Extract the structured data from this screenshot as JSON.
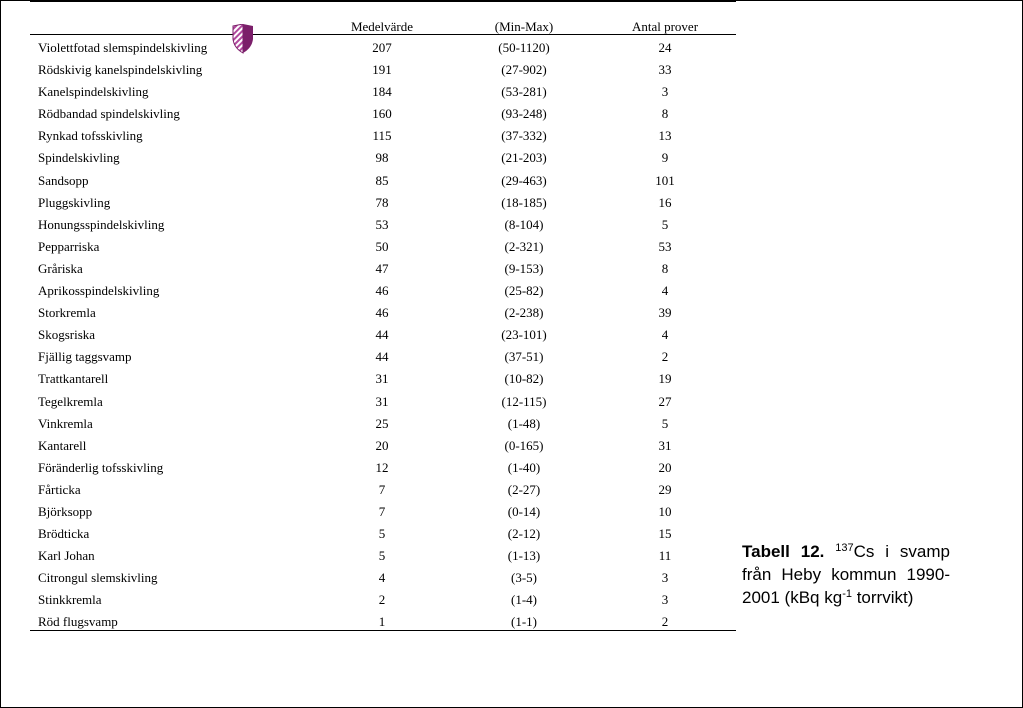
{
  "table": {
    "headers": {
      "mean": "Medelvärde",
      "range": "(Min-Max)",
      "count": "Antal prover"
    },
    "rows": [
      {
        "name": "Violettfotad slemspindelskivling",
        "mean": "207",
        "range": "(50-1120)",
        "count": "24"
      },
      {
        "name": "Rödskivig kanelspindelskivling",
        "mean": "191",
        "range": "(27-902)",
        "count": "33"
      },
      {
        "name": "Kanelspindelskivling",
        "mean": "184",
        "range": "(53-281)",
        "count": "3"
      },
      {
        "name": "Rödbandad spindelskivling",
        "mean": "160",
        "range": "(93-248)",
        "count": "8"
      },
      {
        "name": "Rynkad tofsskivling",
        "mean": "115",
        "range": "(37-332)",
        "count": "13"
      },
      {
        "name": "Spindelskivling",
        "mean": "98",
        "range": "(21-203)",
        "count": "9"
      },
      {
        "name": "Sandsopp",
        "mean": "85",
        "range": "(29-463)",
        "count": "101"
      },
      {
        "name": "Pluggskivling",
        "mean": "78",
        "range": "(18-185)",
        "count": "16"
      },
      {
        "name": "Honungsspindelskivling",
        "mean": "53",
        "range": "(8-104)",
        "count": "5"
      },
      {
        "name": "Pepparriska",
        "mean": "50",
        "range": "(2-321)",
        "count": "53"
      },
      {
        "name": "Gråriska",
        "mean": "47",
        "range": "(9-153)",
        "count": "8"
      },
      {
        "name": "Aprikosspindelskivling",
        "mean": "46",
        "range": "(25-82)",
        "count": "4"
      },
      {
        "name": "Storkremla",
        "mean": "46",
        "range": "(2-238)",
        "count": "39"
      },
      {
        "name": "Skogsriska",
        "mean": "44",
        "range": "(23-101)",
        "count": "4"
      },
      {
        "name": "Fjällig taggsvamp",
        "mean": "44",
        "range": "(37-51)",
        "count": "2"
      },
      {
        "name": "Trattkantarell",
        "mean": "31",
        "range": "(10-82)",
        "count": "19"
      },
      {
        "name": "Tegelkremla",
        "mean": "31",
        "range": "(12-115)",
        "count": "27"
      },
      {
        "name": "Vinkremla",
        "mean": "25",
        "range": "(1-48)",
        "count": "5"
      },
      {
        "name": "Kantarell",
        "mean": "20",
        "range": "(0-165)",
        "count": "31"
      },
      {
        "name": "Föränderlig tofsskivling",
        "mean": "12",
        "range": "(1-40)",
        "count": "20"
      },
      {
        "name": "Fårticka",
        "mean": "7",
        "range": "(2-27)",
        "count": "29"
      },
      {
        "name": "Björksopp",
        "mean": "7",
        "range": "(0-14)",
        "count": "10"
      },
      {
        "name": "Brödticka",
        "mean": "5",
        "range": "(2-12)",
        "count": "15"
      },
      {
        "name": "Karl Johan",
        "mean": "5",
        "range": "(1-13)",
        "count": "11"
      },
      {
        "name": "Citrongul slemskivling",
        "mean": "4",
        "range": "(3-5)",
        "count": "3"
      },
      {
        "name": "Stinkkremla",
        "mean": "2",
        "range": "(1-4)",
        "count": "3"
      },
      {
        "name": "Röd flugsvamp",
        "mean": "1",
        "range": "(1-1)",
        "count": "2"
      }
    ]
  },
  "caption": {
    "lead": "Tabell 12.",
    "isotope_mass": "137",
    "isotope_rest": "Cs i svamp från Heby kommun 1990-2001 (kBq kg",
    "exponent": "-1",
    "tail": " torrvikt)"
  },
  "logo": {
    "icon": "shield-logo-icon",
    "color_dark": "#7b1f6a",
    "color_light": "#c77bb8"
  }
}
